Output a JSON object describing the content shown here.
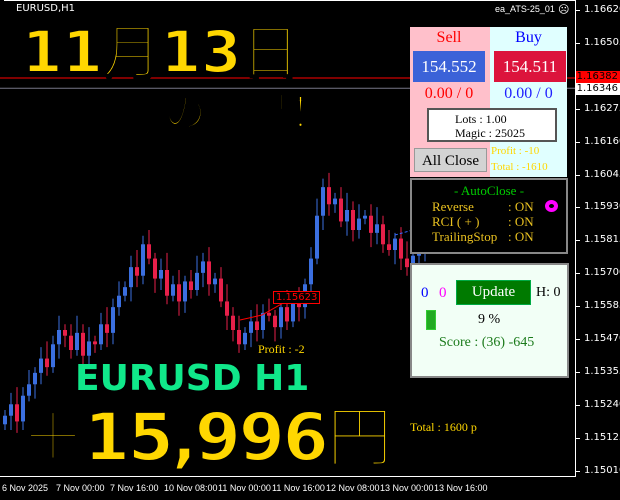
{
  "window": {
    "symbol": "EURUSD,H1",
    "ea_name": "ea_ATS-25_01",
    "ea_status_icon": "sad-face-icon"
  },
  "price_axis": [
    "1.16620",
    "1.16505",
    "1.16275",
    "1.16160",
    "1.16045",
    "1.15930",
    "1.15815",
    "1.15700",
    "1.15585",
    "1.15470",
    "1.15355",
    "1.15240",
    "1.15125",
    "1.15010"
  ],
  "ask_label": "1.16382",
  "bid_label": "1.16346",
  "time_axis": [
    "6 Nov 2025",
    "7 Nov 00:00",
    "7 Nov 16:00",
    "10 Nov 08:00",
    "11 Nov 00:00",
    "11 Nov 16:00",
    "12 Nov 08:00",
    "13 Nov 00:00",
    "13 Nov 16:00"
  ],
  "chart_data": {
    "type": "candlestick",
    "symbol": "EURUSD",
    "timeframe": "H1",
    "ylim": [
      1.1501,
      1.1662
    ],
    "closes": [
      1.152,
      1.1524,
      1.1518,
      1.1527,
      1.1531,
      1.1535,
      1.154,
      1.1537,
      1.1545,
      1.155,
      1.1548,
      1.1543,
      1.1549,
      1.1541,
      1.1546,
      1.1545,
      1.1552,
      1.1549,
      1.1558,
      1.1562,
      1.1565,
      1.1572,
      1.1569,
      1.158,
      1.1575,
      1.1568,
      1.1571,
      1.1562,
      1.1566,
      1.156,
      1.1567,
      1.1564,
      1.157,
      1.1574,
      1.1566,
      1.1568,
      1.156,
      1.1555,
      1.155,
      1.1545,
      1.1549,
      1.1553,
      1.155,
      1.1556,
      1.1555,
      1.1551,
      1.1558,
      1.1553,
      1.156,
      1.1558,
      1.1566,
      1.1575,
      1.159,
      1.16,
      1.1594,
      1.1596,
      1.1588,
      1.1592,
      1.1585,
      1.1589,
      1.159,
      1.1584,
      1.1587,
      1.158,
      1.1578,
      1.1582,
      1.1575,
      1.1572,
      1.1576,
      1.1578,
      1.158
    ],
    "bull_color": "#3b6fe0",
    "bear_color": "#e8204a"
  },
  "trade_label": "1.15623",
  "overlay": {
    "date": "11月13日",
    "result": "の結果！",
    "pair": "EURUSD H1",
    "profit": "＋15,996円",
    "profit_line": "Profit : -2",
    "total_line": "Total : 1600 p"
  },
  "panel": {
    "sell_label": "Sell",
    "buy_label": "Buy",
    "sell_price": "154.552",
    "buy_price": "154.511",
    "sell_pl": "0.00 / 0",
    "buy_pl": "0.00 / 0",
    "lots": "Lots   : 1.00",
    "magic": "Magic : 25025",
    "all_close": "All Close",
    "profit_ghost": "Profit : -10",
    "total_ghost": "Total : -1610"
  },
  "autoclose": {
    "title": "- AutoClose -",
    "rows": [
      {
        "label": "Reverse",
        "value": ": ON"
      },
      {
        "label": "RCI ( + )",
        "value": ": ON"
      },
      {
        "label": "TrailingStop",
        "value": ": ON"
      }
    ]
  },
  "status": {
    "count_blue": "0",
    "count_magenta": "0",
    "update": "Update",
    "h": "H: 0",
    "percent": "9 %",
    "progress": 0.09,
    "score": "Score : (36) -645"
  }
}
